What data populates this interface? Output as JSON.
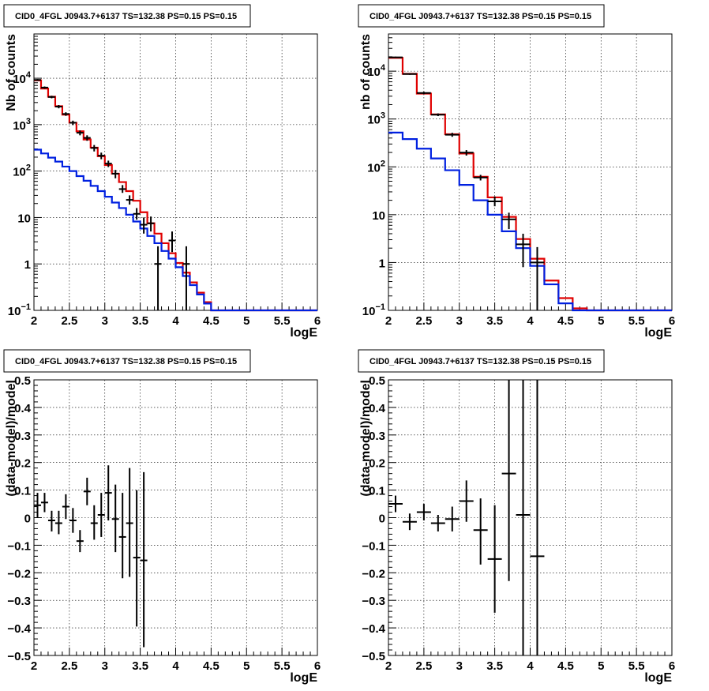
{
  "chart_data": [
    {
      "type": "line",
      "title": "CID0_4FGL J0943.7+6137 TS=132.38 PS=0.15 PS=0.15",
      "xlabel": "logE",
      "ylabel": "Nb of counts",
      "xlim": [
        2,
        6
      ],
      "ylim": [
        0.1,
        90000
      ],
      "ylog": true,
      "grid": true,
      "x_ticks": [
        "2",
        "2.5",
        "3",
        "3.5",
        "4",
        "4.5",
        "5",
        "5.5",
        "6"
      ],
      "y_ticks": [
        {
          "value": 0.1,
          "base": "10",
          "exp": "−1"
        },
        {
          "value": 1,
          "base": "1",
          "exp": ""
        },
        {
          "value": 10,
          "base": "10",
          "exp": ""
        },
        {
          "value": 100,
          "base": "10",
          "exp": "2"
        },
        {
          "value": 1000,
          "base": "10",
          "exp": "3"
        },
        {
          "value": 10000,
          "base": "10",
          "exp": "4"
        }
      ],
      "bin_width": 0.1,
      "series": [
        {
          "color": "#e00000",
          "style": "step",
          "x": [
            2.0,
            2.1,
            2.2,
            2.3,
            2.4,
            2.5,
            2.6,
            2.7,
            2.8,
            2.9,
            3.0,
            3.1,
            3.2,
            3.3,
            3.4,
            3.5,
            3.6,
            3.7,
            3.8,
            3.9,
            4.0,
            4.1,
            4.2,
            4.3,
            4.4,
            4.5,
            4.6,
            4.7,
            4.8,
            4.9,
            5.0,
            5.1,
            5.2,
            5.3,
            5.4,
            5.5,
            5.6,
            5.7,
            5.8,
            5.9
          ],
          "values": [
            9000,
            6000,
            4000,
            2500,
            1650,
            1100,
            720,
            480,
            320,
            210,
            135,
            88,
            58,
            37,
            23,
            13,
            7.5,
            4.5,
            2.8,
            1.7,
            1.05,
            0.65,
            0.4,
            0.24,
            0.15,
            0.1,
            0.1,
            0.1,
            0.1,
            0.1,
            0.1,
            0.1,
            0.1,
            0.1,
            0.1,
            0.1,
            0.1,
            0.1,
            0.1,
            0.1
          ]
        },
        {
          "color": "#0020e0",
          "style": "step",
          "x": [
            2.0,
            2.1,
            2.2,
            2.3,
            2.4,
            2.5,
            2.6,
            2.7,
            2.8,
            2.9,
            3.0,
            3.1,
            3.2,
            3.3,
            3.4,
            3.5,
            3.6,
            3.7,
            3.8,
            3.9,
            4.0,
            4.1,
            4.2,
            4.3,
            4.4,
            4.5,
            4.6,
            4.7,
            4.8,
            4.9,
            5.0,
            5.1,
            5.2,
            5.3,
            5.4,
            5.5,
            5.6,
            5.7,
            5.8,
            5.9
          ],
          "values": [
            290,
            240,
            195,
            160,
            125,
            100,
            78,
            62,
            48,
            37,
            28,
            21,
            16,
            11.5,
            8.2,
            5.8,
            4.0,
            2.8,
            1.9,
            1.3,
            0.85,
            0.55,
            0.35,
            0.22,
            0.14,
            0.1,
            0.1,
            0.1,
            0.1,
            0.1,
            0.1,
            0.1,
            0.1,
            0.1,
            0.1,
            0.1,
            0.1,
            0.1,
            0.1,
            0.1
          ]
        }
      ],
      "points": [
        {
          "x": 2.05,
          "y": 9200,
          "lo": 8800,
          "hi": 9600
        },
        {
          "x": 2.15,
          "y": 6300,
          "lo": 5950,
          "hi": 6650
        },
        {
          "x": 2.25,
          "y": 3950,
          "lo": 3700,
          "hi": 4200
        },
        {
          "x": 2.35,
          "y": 2450,
          "lo": 2250,
          "hi": 2650
        },
        {
          "x": 2.45,
          "y": 1700,
          "lo": 1550,
          "hi": 1850
        },
        {
          "x": 2.55,
          "y": 1100,
          "lo": 980,
          "hi": 1220
        },
        {
          "x": 2.65,
          "y": 670,
          "lo": 590,
          "hi": 750
        },
        {
          "x": 2.75,
          "y": 520,
          "lo": 450,
          "hi": 590
        },
        {
          "x": 2.85,
          "y": 315,
          "lo": 265,
          "hi": 365
        },
        {
          "x": 2.95,
          "y": 215,
          "lo": 180,
          "hi": 250
        },
        {
          "x": 3.05,
          "y": 145,
          "lo": 122,
          "hi": 168
        },
        {
          "x": 3.15,
          "y": 88,
          "lo": 70,
          "hi": 106
        },
        {
          "x": 3.25,
          "y": 41,
          "lo": 34,
          "hi": 50
        },
        {
          "x": 3.35,
          "y": 24,
          "lo": 19,
          "hi": 30
        },
        {
          "x": 3.45,
          "y": 12,
          "lo": 9,
          "hi": 16
        },
        {
          "x": 3.55,
          "y": 7,
          "lo": 4.5,
          "hi": 10
        },
        {
          "x": 3.65,
          "y": 7.5,
          "lo": 5,
          "hi": 10.5
        },
        {
          "x": 3.75,
          "y": 1,
          "lo": 0.1,
          "hi": 2.4
        },
        {
          "x": 3.95,
          "y": 3.2,
          "lo": 1.8,
          "hi": 5
        },
        {
          "x": 4.15,
          "y": 1,
          "lo": 0.1,
          "hi": 2.4
        }
      ]
    },
    {
      "type": "line",
      "title": "CID0_4FGL J0943.7+6137 TS=132.38 PS=0.15 PS=0.15",
      "xlabel": "logE",
      "ylabel": "nb of counts",
      "xlim": [
        2,
        6
      ],
      "ylim": [
        0.1,
        60000
      ],
      "ylog": true,
      "grid": true,
      "x_ticks": [
        "2",
        "2.5",
        "3",
        "3.5",
        "4",
        "4.5",
        "5",
        "5.5",
        "6"
      ],
      "y_ticks": [
        {
          "value": 0.1,
          "base": "10",
          "exp": "−1"
        },
        {
          "value": 1,
          "base": "1",
          "exp": ""
        },
        {
          "value": 10,
          "base": "10",
          "exp": ""
        },
        {
          "value": 100,
          "base": "10",
          "exp": "2"
        },
        {
          "value": 1000,
          "base": "10",
          "exp": "3"
        },
        {
          "value": 10000,
          "base": "10",
          "exp": "4"
        }
      ],
      "bin_width": 0.2,
      "series": [
        {
          "color": "#e00000",
          "style": "step",
          "x": [
            2.0,
            2.2,
            2.4,
            2.6,
            2.8,
            3.0,
            3.2,
            3.4,
            3.6,
            3.8,
            4.0,
            4.2,
            4.4,
            4.6,
            4.8,
            5.0,
            5.2,
            5.4,
            5.6,
            5.8
          ],
          "values": [
            19000,
            8800,
            3400,
            1250,
            480,
            190,
            62,
            23,
            9,
            3.1,
            1.2,
            0.42,
            0.18,
            0.11,
            0.1,
            0.1,
            0.1,
            0.1,
            0.1,
            0.1
          ]
        },
        {
          "color": "#0020e0",
          "style": "step",
          "x": [
            2.0,
            2.2,
            2.4,
            2.6,
            2.8,
            3.0,
            3.2,
            3.4,
            3.6,
            3.8,
            4.0,
            4.2,
            4.4,
            4.6,
            4.8,
            5.0,
            5.2,
            5.4,
            5.6,
            5.8
          ],
          "values": [
            520,
            380,
            240,
            150,
            85,
            42,
            20,
            10,
            4.5,
            2,
            0.85,
            0.35,
            0.14,
            0.1,
            0.1,
            0.1,
            0.1,
            0.1,
            0.1,
            0.1
          ]
        }
      ],
      "points": [
        {
          "x": 2.1,
          "y": 19500,
          "lo": 18900,
          "hi": 20100
        },
        {
          "x": 2.3,
          "y": 8700,
          "lo": 8400,
          "hi": 9000
        },
        {
          "x": 2.5,
          "y": 3500,
          "lo": 3300,
          "hi": 3700
        },
        {
          "x": 2.7,
          "y": 1230,
          "lo": 1150,
          "hi": 1310
        },
        {
          "x": 2.9,
          "y": 470,
          "lo": 425,
          "hi": 515
        },
        {
          "x": 3.1,
          "y": 198,
          "lo": 172,
          "hi": 224
        },
        {
          "x": 3.3,
          "y": 60,
          "lo": 52,
          "hi": 68
        },
        {
          "x": 3.5,
          "y": 19,
          "lo": 15,
          "hi": 24
        },
        {
          "x": 3.7,
          "y": 8,
          "lo": 5,
          "hi": 11
        },
        {
          "x": 3.9,
          "y": 2.4,
          "lo": 0.8,
          "hi": 4
        },
        {
          "x": 4.1,
          "y": 1,
          "lo": 0.1,
          "hi": 2.1
        }
      ]
    },
    {
      "type": "scatter",
      "title": "CID0_4FGL J0943.7+6137 TS=132.38 PS=0.15 PS=0.15",
      "xlabel": "logE",
      "ylabel": "(data-model)/model",
      "xlim": [
        2,
        6
      ],
      "ylim": [
        -0.5,
        0.5
      ],
      "ylog": false,
      "grid": true,
      "x_ticks": [
        "2",
        "2.5",
        "3",
        "3.5",
        "4",
        "4.5",
        "5",
        "5.5",
        "6"
      ],
      "y_ticks": [
        "−0.5",
        "−0.4",
        "−0.3",
        "−0.2",
        "−0.1",
        "0",
        "0.1",
        "0.2",
        "0.3",
        "0.4",
        "0.5"
      ],
      "bin_width": 0.1,
      "points": [
        {
          "x": 2.05,
          "y": 0.045,
          "lo": 0.0,
          "hi": 0.09
        },
        {
          "x": 2.15,
          "y": 0.055,
          "lo": 0.02,
          "hi": 0.09
        },
        {
          "x": 2.25,
          "y": -0.01,
          "lo": -0.05,
          "hi": 0.025
        },
        {
          "x": 2.35,
          "y": -0.02,
          "lo": -0.06,
          "hi": 0.025
        },
        {
          "x": 2.45,
          "y": 0.04,
          "lo": -0.005,
          "hi": 0.085
        },
        {
          "x": 2.55,
          "y": -0.01,
          "lo": -0.055,
          "hi": 0.035
        },
        {
          "x": 2.65,
          "y": -0.085,
          "lo": -0.125,
          "hi": -0.045
        },
        {
          "x": 2.75,
          "y": 0.095,
          "lo": 0.045,
          "hi": 0.145
        },
        {
          "x": 2.85,
          "y": -0.02,
          "lo": -0.08,
          "hi": 0.045
        },
        {
          "x": 2.95,
          "y": 0.01,
          "lo": -0.07,
          "hi": 0.09
        },
        {
          "x": 3.05,
          "y": 0.09,
          "lo": -0.01,
          "hi": 0.19
        },
        {
          "x": 3.15,
          "y": -0.005,
          "lo": -0.125,
          "hi": 0.12
        },
        {
          "x": 3.25,
          "y": -0.07,
          "lo": -0.22,
          "hi": 0.09
        },
        {
          "x": 3.35,
          "y": -0.02,
          "lo": -0.215,
          "hi": 0.18
        },
        {
          "x": 3.45,
          "y": -0.145,
          "lo": -0.395,
          "hi": 0.1
        },
        {
          "x": 3.55,
          "y": -0.155,
          "lo": -0.47,
          "hi": 0.165
        }
      ]
    },
    {
      "type": "scatter",
      "title": "CID0_4FGL J0943.7+6137 TS=132.38 PS=0.15 PS=0.15",
      "xlabel": "logE",
      "ylabel": "(data-model)/model",
      "xlim": [
        2,
        6
      ],
      "ylim": [
        -0.5,
        0.5
      ],
      "ylog": false,
      "grid": true,
      "x_ticks": [
        "2",
        "2.5",
        "3",
        "3.5",
        "4",
        "4.5",
        "5",
        "5.5",
        "6"
      ],
      "y_ticks": [
        "−0.5",
        "−0.4",
        "−0.3",
        "−0.2",
        "−0.1",
        "0",
        "0.1",
        "0.2",
        "0.3",
        "0.4",
        "0.5"
      ],
      "bin_width": 0.2,
      "points": [
        {
          "x": 2.1,
          "y": 0.05,
          "lo": 0.02,
          "hi": 0.08
        },
        {
          "x": 2.3,
          "y": -0.015,
          "lo": -0.045,
          "hi": 0.015
        },
        {
          "x": 2.5,
          "y": 0.02,
          "lo": -0.01,
          "hi": 0.05
        },
        {
          "x": 2.7,
          "y": -0.02,
          "lo": -0.05,
          "hi": 0.01
        },
        {
          "x": 2.9,
          "y": -0.005,
          "lo": -0.05,
          "hi": 0.04
        },
        {
          "x": 3.1,
          "y": 0.06,
          "lo": -0.015,
          "hi": 0.135
        },
        {
          "x": 3.3,
          "y": -0.045,
          "lo": -0.17,
          "hi": 0.07
        },
        {
          "x": 3.5,
          "y": -0.15,
          "lo": -0.345,
          "hi": 0.045
        },
        {
          "x": 3.7,
          "y": 0.16,
          "lo": -0.23,
          "hi": 0.5
        },
        {
          "x": 3.9,
          "y": 0.01,
          "lo": -0.5,
          "hi": 0.5
        },
        {
          "x": 4.1,
          "y": -0.14,
          "lo": -0.5,
          "hi": 0.5
        }
      ]
    }
  ]
}
